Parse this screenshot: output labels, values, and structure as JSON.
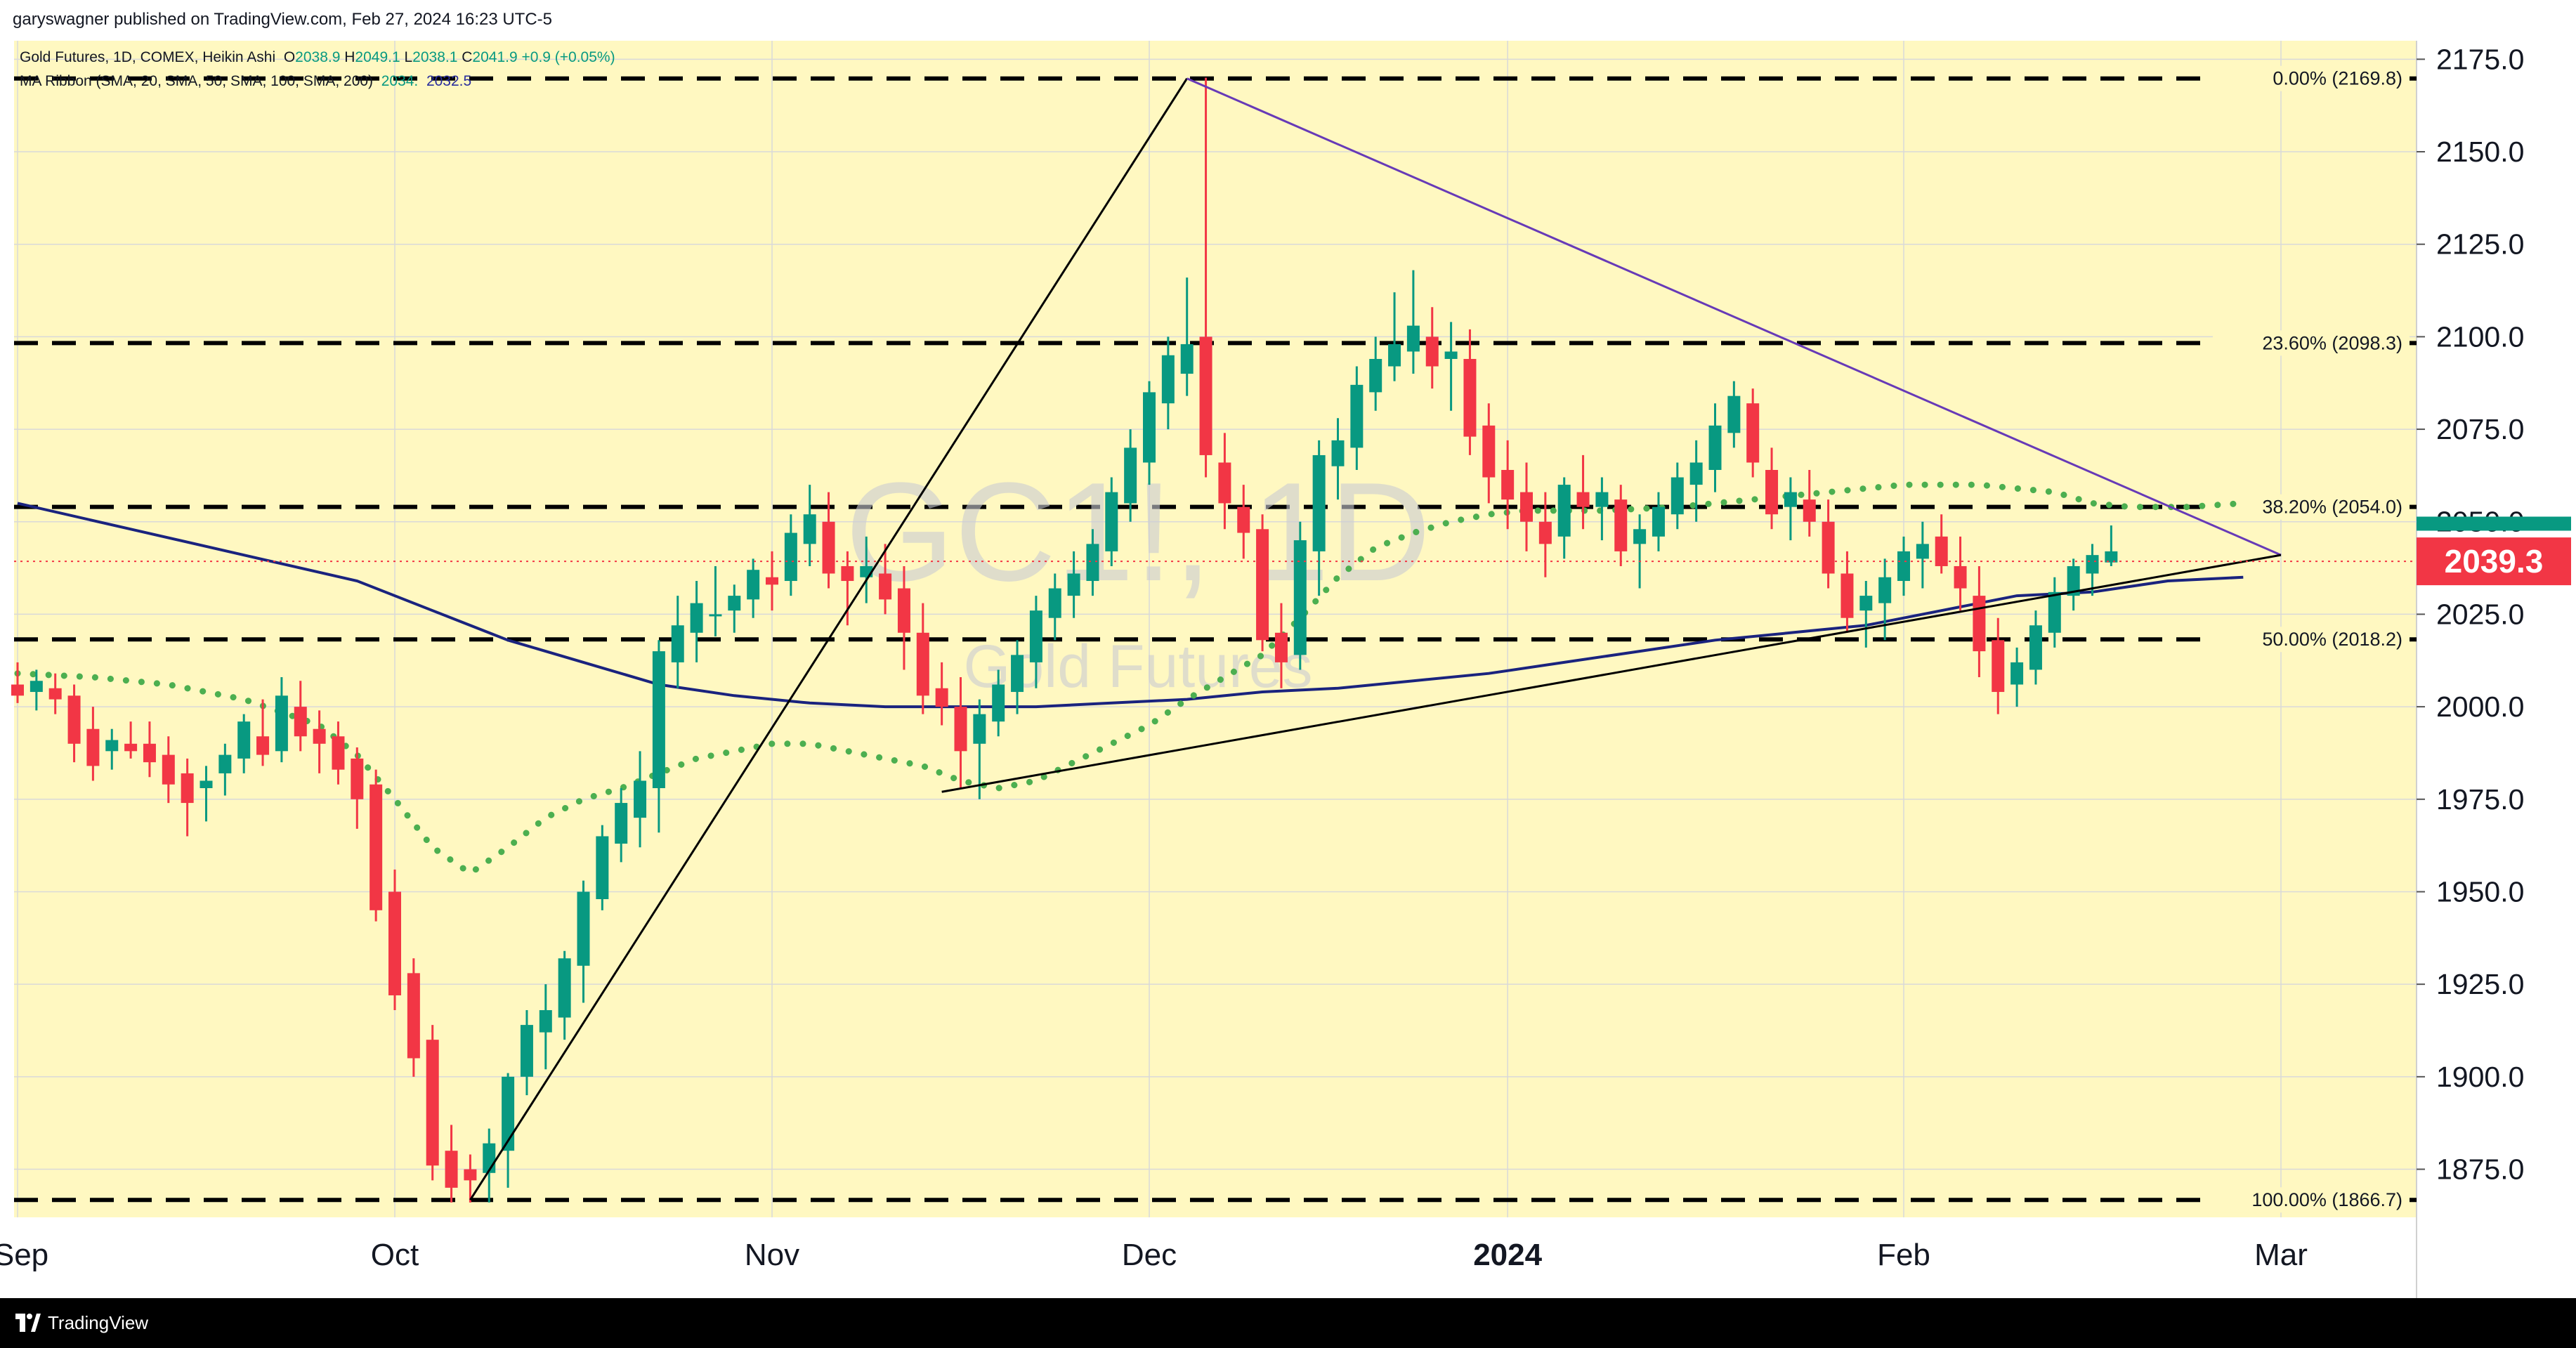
{
  "header": {
    "published": "garyswagner published on TradingView.com, Feb 27, 2024 16:23 UTC-5"
  },
  "legend": {
    "title": "Gold Futures, 1D, COMEX, Heikin Ashi",
    "o_label": "O",
    "o_value": "2038.9",
    "h_label": "H",
    "h_value": "2049.1",
    "l_label": "L",
    "l_value": "2038.1",
    "c_label": "C",
    "c_value": "2041.9",
    "change": "+0.9 (+0.05%)",
    "ma_label": "MA Ribbon (SMA, 20, SMA, 50, SMA, 100, SMA, 200)",
    "ma_v1": "2034.",
    "ma_v2": "2032.5"
  },
  "watermark": {
    "symbol": "GC1!, 1D",
    "name": "Gold Futures"
  },
  "price_badge": {
    "value": "2039.3",
    "color": "#f23645"
  },
  "footer": {
    "brand": "TradingView"
  },
  "colors": {
    "background": "#fff8c1",
    "up": "#089981",
    "down": "#f23645",
    "ma_dotted": "#4caf50",
    "ma_solid": "#1a237e",
    "trendline_purple": "#673ab7",
    "trendline_black": "#000000"
  },
  "chart_data": {
    "type": "candlestick",
    "style": "Heikin Ashi",
    "ylim": [
      1862,
      2180
    ],
    "y_ticks": [
      "2175.0",
      "2150.0",
      "2125.0",
      "2100.0",
      "2075.0",
      "2050.0",
      "2025.0",
      "2000.0",
      "1975.0",
      "1950.0",
      "1925.0",
      "1900.0",
      "1875.0"
    ],
    "x_ticks": [
      {
        "label": "Sep",
        "i": 0
      },
      {
        "label": "Oct",
        "i": 20
      },
      {
        "label": "Nov",
        "i": 40
      },
      {
        "label": "Dec",
        "i": 60
      },
      {
        "label": "2024",
        "i": 79,
        "bold": true
      },
      {
        "label": "Feb",
        "i": 100
      },
      {
        "label": "Mar",
        "i": 120
      }
    ],
    "fib_levels": [
      {
        "label": "0.00% (2169.8)",
        "value": 2169.8
      },
      {
        "label": "23.60% (2098.3)",
        "value": 2098.3
      },
      {
        "label": "38.20% (2054.0)",
        "value": 2054.0
      },
      {
        "label": "50.00% (2018.2)",
        "value": 2018.2
      },
      {
        "label": "100.00% (1866.7)",
        "value": 1866.7
      }
    ],
    "current_price": 2039.3,
    "candles_ohlc": [
      [
        2006,
        2012,
        2001,
        2003
      ],
      [
        2004,
        2010,
        1999,
        2007
      ],
      [
        2005,
        2009,
        1998,
        2002
      ],
      [
        2003,
        2006,
        1985,
        1990
      ],
      [
        1994,
        2000,
        1980,
        1984
      ],
      [
        1988,
        1994,
        1983,
        1991
      ],
      [
        1990,
        1996,
        1986,
        1988
      ],
      [
        1990,
        1996,
        1981,
        1985
      ],
      [
        1987,
        1992,
        1974,
        1979
      ],
      [
        1982,
        1986,
        1965,
        1974
      ],
      [
        1978,
        1984,
        1969,
        1980
      ],
      [
        1982,
        1990,
        1976,
        1987
      ],
      [
        1986,
        1998,
        1982,
        1996
      ],
      [
        1992,
        2002,
        1984,
        1987
      ],
      [
        1988,
        2008,
        1985,
        2003
      ],
      [
        2000,
        2007,
        1988,
        1992
      ],
      [
        1994,
        1999,
        1982,
        1990
      ],
      [
        1992,
        1996,
        1979,
        1983
      ],
      [
        1986,
        1989,
        1967,
        1975
      ],
      [
        1979,
        1983,
        1942,
        1945
      ],
      [
        1950,
        1956,
        1918,
        1922
      ],
      [
        1928,
        1932,
        1900,
        1905
      ],
      [
        1910,
        1914,
        1872,
        1876
      ],
      [
        1880,
        1887,
        1866,
        1870
      ],
      [
        1875,
        1879,
        1866,
        1872
      ],
      [
        1874,
        1886,
        1866,
        1882
      ],
      [
        1880,
        1901,
        1870,
        1900
      ],
      [
        1900,
        1918,
        1895,
        1914
      ],
      [
        1912,
        1925,
        1902,
        1918
      ],
      [
        1916,
        1934,
        1910,
        1932
      ],
      [
        1930,
        1953,
        1920,
        1950
      ],
      [
        1948,
        1968,
        1945,
        1965
      ],
      [
        1963,
        1978,
        1958,
        1974
      ],
      [
        1970,
        1988,
        1962,
        1980
      ],
      [
        1978,
        2018,
        1966,
        2015
      ],
      [
        2012,
        2030,
        2005,
        2022
      ],
      [
        2020,
        2034,
        2012,
        2028
      ],
      [
        2025,
        2038,
        2019,
        2025
      ],
      [
        2026,
        2033,
        2020,
        2030
      ],
      [
        2029,
        2040,
        2024,
        2037
      ],
      [
        2035,
        2042,
        2026,
        2033
      ],
      [
        2034,
        2052,
        2030,
        2047
      ],
      [
        2044,
        2060,
        2038,
        2052
      ],
      [
        2050,
        2058,
        2032,
        2036
      ],
      [
        2038,
        2042,
        2022,
        2034
      ],
      [
        2035,
        2046,
        2028,
        2038
      ],
      [
        2036,
        2044,
        2025,
        2029
      ],
      [
        2032,
        2038,
        2010,
        2020
      ],
      [
        2020,
        2028,
        1998,
        2003
      ],
      [
        2005,
        2012,
        1995,
        2000
      ],
      [
        2000,
        2008,
        1978,
        1988
      ],
      [
        1990,
        2002,
        1975,
        1998
      ],
      [
        1996,
        2010,
        1992,
        2006
      ],
      [
        2004,
        2018,
        1998,
        2014
      ],
      [
        2012,
        2030,
        2005,
        2026
      ],
      [
        2024,
        2036,
        2018,
        2032
      ],
      [
        2030,
        2042,
        2024,
        2036
      ],
      [
        2034,
        2048,
        2030,
        2044
      ],
      [
        2042,
        2062,
        2038,
        2058
      ],
      [
        2055,
        2075,
        2050,
        2070
      ],
      [
        2066,
        2088,
        2060,
        2085
      ],
      [
        2082,
        2100,
        2075,
        2095
      ],
      [
        2090,
        2116,
        2084,
        2098
      ],
      [
        2100,
        2170,
        2062,
        2068
      ],
      [
        2066,
        2074,
        2048,
        2055
      ],
      [
        2054,
        2060,
        2040,
        2047
      ],
      [
        2048,
        2052,
        2015,
        2018
      ],
      [
        2020,
        2028,
        2005,
        2012
      ],
      [
        2014,
        2050,
        2010,
        2045
      ],
      [
        2042,
        2072,
        2030,
        2068
      ],
      [
        2065,
        2078,
        2056,
        2072
      ],
      [
        2070,
        2092,
        2064,
        2087
      ],
      [
        2085,
        2100,
        2080,
        2094
      ],
      [
        2092,
        2112,
        2088,
        2098
      ],
      [
        2096,
        2118,
        2090,
        2103
      ],
      [
        2100,
        2108,
        2086,
        2092
      ],
      [
        2094,
        2104,
        2080,
        2096
      ],
      [
        2094,
        2102,
        2068,
        2073
      ],
      [
        2076,
        2082,
        2055,
        2062
      ],
      [
        2064,
        2072,
        2048,
        2056
      ],
      [
        2058,
        2066,
        2042,
        2050
      ],
      [
        2050,
        2058,
        2035,
        2044
      ],
      [
        2046,
        2062,
        2040,
        2060
      ],
      [
        2058,
        2068,
        2048,
        2054
      ],
      [
        2054,
        2062,
        2045,
        2058
      ],
      [
        2056,
        2060,
        2038,
        2042
      ],
      [
        2044,
        2052,
        2032,
        2048
      ],
      [
        2046,
        2058,
        2042,
        2054
      ],
      [
        2052,
        2066,
        2048,
        2062
      ],
      [
        2060,
        2072,
        2050,
        2066
      ],
      [
        2064,
        2082,
        2058,
        2076
      ],
      [
        2074,
        2088,
        2070,
        2084
      ],
      [
        2082,
        2086,
        2062,
        2066
      ],
      [
        2064,
        2070,
        2048,
        2052
      ],
      [
        2054,
        2062,
        2045,
        2058
      ],
      [
        2056,
        2064,
        2046,
        2050
      ],
      [
        2050,
        2056,
        2032,
        2036
      ],
      [
        2036,
        2042,
        2020,
        2024
      ],
      [
        2026,
        2034,
        2016,
        2030
      ],
      [
        2028,
        2040,
        2018,
        2035
      ],
      [
        2034,
        2046,
        2030,
        2042
      ],
      [
        2040,
        2050,
        2032,
        2044
      ],
      [
        2046,
        2052,
        2036,
        2038
      ],
      [
        2038,
        2046,
        2026,
        2032
      ],
      [
        2030,
        2038,
        2008,
        2015
      ],
      [
        2018,
        2024,
        1998,
        2004
      ],
      [
        2006,
        2016,
        2000,
        2012
      ],
      [
        2010,
        2026,
        2006,
        2022
      ],
      [
        2020,
        2035,
        2016,
        2031
      ],
      [
        2030,
        2040,
        2026,
        2038
      ],
      [
        2036,
        2044,
        2030,
        2041
      ],
      [
        2039,
        2049,
        2038,
        2042
      ]
    ],
    "ma_dotted": [
      [
        0,
        2009
      ],
      [
        4,
        2008
      ],
      [
        8,
        2006
      ],
      [
        12,
        2002
      ],
      [
        16,
        1995
      ],
      [
        18,
        1987
      ],
      [
        20,
        1975
      ],
      [
        22,
        1962
      ],
      [
        24,
        1955
      ],
      [
        26,
        1962
      ],
      [
        28,
        1970
      ],
      [
        30,
        1975
      ],
      [
        32,
        1978
      ],
      [
        34,
        1982
      ],
      [
        36,
        1986
      ],
      [
        38,
        1988
      ],
      [
        40,
        1990
      ],
      [
        42,
        1990
      ],
      [
        44,
        1988
      ],
      [
        46,
        1986
      ],
      [
        48,
        1984
      ],
      [
        50,
        1980
      ],
      [
        52,
        1978
      ],
      [
        54,
        1980
      ],
      [
        56,
        1985
      ],
      [
        58,
        1990
      ],
      [
        60,
        1995
      ],
      [
        62,
        2002
      ],
      [
        64,
        2008
      ],
      [
        66,
        2014
      ],
      [
        68,
        2024
      ],
      [
        70,
        2035
      ],
      [
        72,
        2043
      ],
      [
        74,
        2047
      ],
      [
        76,
        2050
      ],
      [
        78,
        2052
      ],
      [
        80,
        2053
      ],
      [
        84,
        2053
      ],
      [
        88,
        2054
      ],
      [
        92,
        2056
      ],
      [
        96,
        2058
      ],
      [
        100,
        2060
      ],
      [
        104,
        2060
      ],
      [
        108,
        2058
      ],
      [
        110,
        2055
      ],
      [
        112,
        2054
      ],
      [
        115,
        2054
      ],
      [
        118,
        2055
      ]
    ],
    "ma_solid": [
      [
        0,
        2055
      ],
      [
        6,
        2048
      ],
      [
        12,
        2041
      ],
      [
        18,
        2034
      ],
      [
        22,
        2026
      ],
      [
        26,
        2018
      ],
      [
        30,
        2012
      ],
      [
        34,
        2006
      ],
      [
        38,
        2003
      ],
      [
        42,
        2001
      ],
      [
        46,
        2000
      ],
      [
        50,
        2000
      ],
      [
        54,
        2000
      ],
      [
        58,
        2001
      ],
      [
        62,
        2002
      ],
      [
        66,
        2004
      ],
      [
        70,
        2005
      ],
      [
        74,
        2007
      ],
      [
        78,
        2009
      ],
      [
        82,
        2012
      ],
      [
        86,
        2015
      ],
      [
        90,
        2018
      ],
      [
        94,
        2020
      ],
      [
        98,
        2022
      ],
      [
        102,
        2026
      ],
      [
        106,
        2030
      ],
      [
        110,
        2031
      ],
      [
        114,
        2034
      ],
      [
        118,
        2035
      ]
    ],
    "trendlines": [
      {
        "from": [
          24,
          1866.7
        ],
        "to": [
          62,
          2169.8
        ],
        "color": "black"
      },
      {
        "from": [
          62,
          2169.8
        ],
        "to": [
          120,
          2041
        ],
        "color": "purple"
      },
      {
        "from": [
          49,
          1977
        ],
        "to": [
          120,
          2041
        ],
        "color": "black"
      }
    ]
  }
}
